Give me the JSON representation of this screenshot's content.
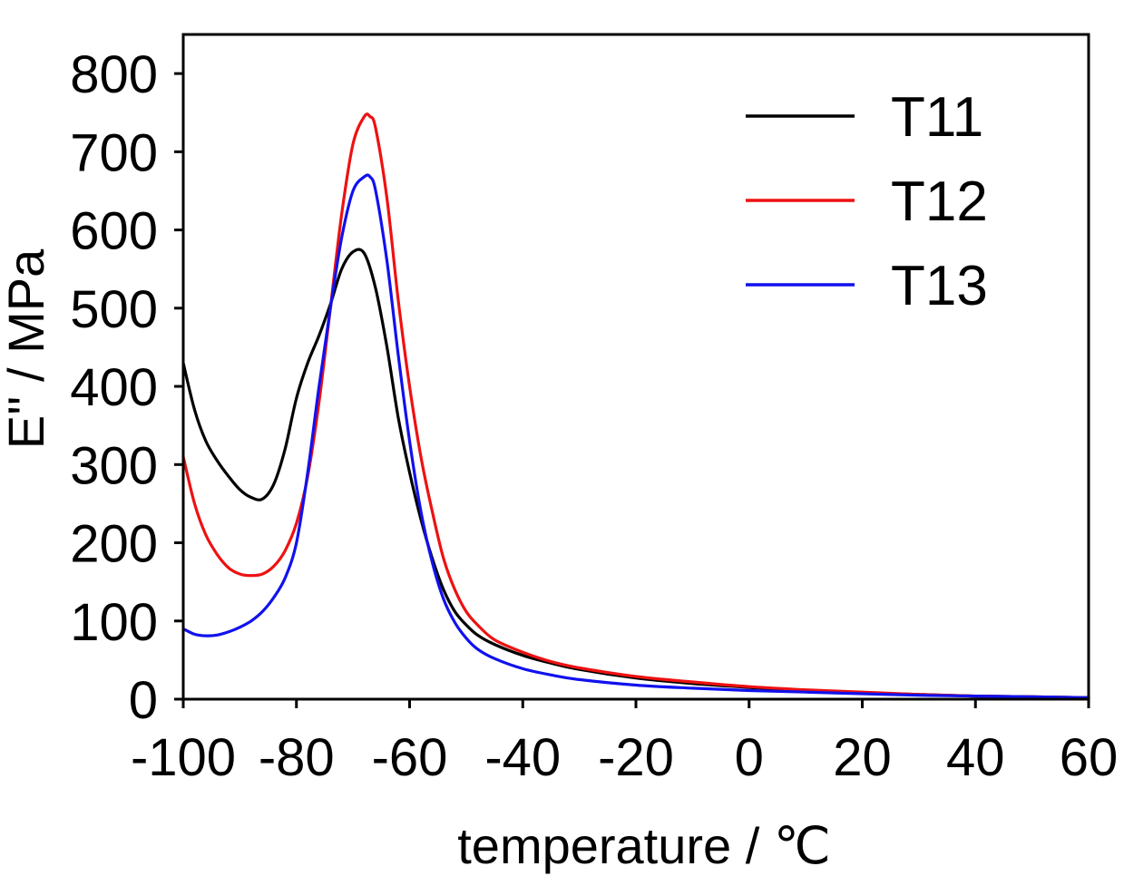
{
  "chart_data": {
    "type": "line",
    "xlabel": "temperature / ℃",
    "ylabel": "E'' / MPa",
    "xlim": [
      -100,
      60
    ],
    "ylim": [
      0,
      850
    ],
    "xticks": [
      "-100",
      "-80",
      "-60",
      "-40",
      "-20",
      "0",
      "20",
      "40",
      "60"
    ],
    "yticks": [
      "0",
      "100",
      "200",
      "300",
      "400",
      "500",
      "600",
      "700",
      "800"
    ],
    "grid": false,
    "legend_position": "top-right",
    "series": [
      {
        "name": "T11",
        "color": "#000000",
        "x": [
          -100,
          -98,
          -96,
          -94,
          -92,
          -90,
          -88,
          -86,
          -84,
          -82,
          -80,
          -78,
          -76,
          -74,
          -72,
          -70,
          -68,
          -66,
          -64,
          -62,
          -60,
          -58,
          -56,
          -54,
          -52,
          -50,
          -48,
          -45,
          -40,
          -35,
          -30,
          -20,
          -10,
          0,
          10,
          20,
          30,
          40,
          50,
          60
        ],
        "y": [
          430,
          370,
          330,
          305,
          285,
          268,
          258,
          256,
          275,
          320,
          385,
          430,
          465,
          505,
          550,
          572,
          570,
          525,
          450,
          360,
          290,
          230,
          180,
          140,
          112,
          95,
          82,
          70,
          56,
          46,
          38,
          27,
          20,
          15,
          11,
          8,
          6,
          4,
          3,
          2
        ]
      },
      {
        "name": "T12",
        "color": "#ee1111",
        "x": [
          -100,
          -98,
          -96,
          -94,
          -92,
          -90,
          -88,
          -86,
          -84,
          -82,
          -80,
          -78,
          -76,
          -74,
          -72,
          -70,
          -68,
          -67,
          -66,
          -64,
          -62,
          -60,
          -58,
          -56,
          -54,
          -52,
          -50,
          -48,
          -45,
          -40,
          -35,
          -30,
          -20,
          -10,
          0,
          10,
          20,
          30,
          40,
          50,
          60
        ],
        "y": [
          310,
          250,
          210,
          185,
          168,
          160,
          158,
          160,
          170,
          190,
          225,
          285,
          380,
          500,
          620,
          710,
          745,
          745,
          730,
          640,
          510,
          400,
          310,
          240,
          180,
          140,
          112,
          95,
          76,
          60,
          48,
          40,
          29,
          22,
          16,
          12,
          9,
          6,
          4,
          3,
          2
        ]
      },
      {
        "name": "T13",
        "color": "#1111ee",
        "x": [
          -100,
          -98,
          -96,
          -94,
          -92,
          -90,
          -88,
          -86,
          -84,
          -82,
          -80,
          -78,
          -76,
          -74,
          -72,
          -70,
          -68,
          -67,
          -66,
          -64,
          -62,
          -60,
          -58,
          -56,
          -54,
          -52,
          -50,
          -48,
          -45,
          -40,
          -35,
          -30,
          -20,
          -10,
          0,
          10,
          20,
          30,
          40,
          50,
          60
        ],
        "y": [
          90,
          83,
          81,
          82,
          86,
          92,
          100,
          112,
          130,
          155,
          200,
          290,
          400,
          500,
          590,
          650,
          668,
          668,
          650,
          560,
          440,
          330,
          240,
          175,
          128,
          98,
          78,
          64,
          52,
          39,
          31,
          25,
          18,
          14,
          11,
          9,
          7,
          5,
          4,
          3,
          2
        ]
      }
    ]
  }
}
